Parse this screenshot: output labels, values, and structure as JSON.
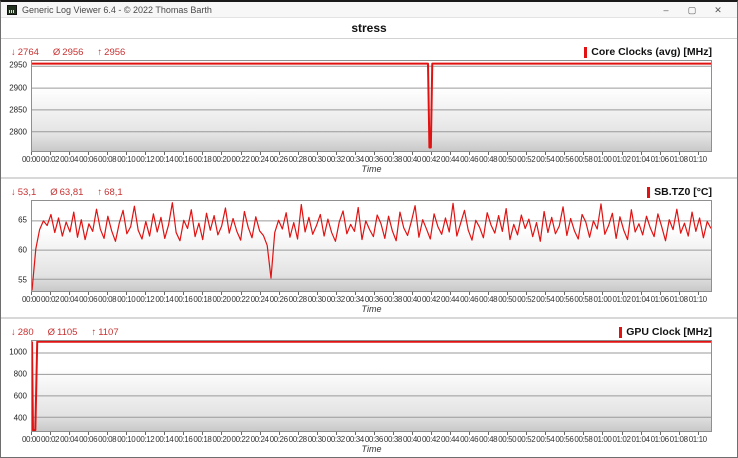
{
  "window": {
    "title": "Generic Log Viewer 6.4 - © 2022 Thomas Barth",
    "controls": [
      {
        "name": "minimize",
        "glyph": "–"
      },
      {
        "name": "maximize",
        "glyph": "▢"
      },
      {
        "name": "close",
        "glyph": "✕"
      }
    ]
  },
  "header": {
    "title": "stress"
  },
  "stat_glyphs": {
    "min": "↓",
    "avg": "Ø",
    "max": "↑"
  },
  "time_axis": {
    "label": "Time",
    "xlim": [
      0,
      71.5
    ],
    "tick_interval_min": 2,
    "tick_labels": [
      "00:00",
      "00:02",
      "00:04",
      "00:06",
      "00:08",
      "00:10",
      "00:12",
      "00:14",
      "00:16",
      "00:18",
      "00:20",
      "00:22",
      "00:24",
      "00:26",
      "00:28",
      "00:30",
      "00:32",
      "00:34",
      "00:36",
      "00:38",
      "00:40",
      "00:42",
      "00:44",
      "00:46",
      "00:48",
      "00:50",
      "00:52",
      "00:54",
      "00:56",
      "00:58",
      "01:00",
      "01:02",
      "01:04",
      "01:06",
      "01:08",
      "01:10"
    ]
  },
  "chart_data": [
    {
      "type": "line",
      "name": "Core Clocks (avg) [MHz]",
      "color": "#e11212",
      "line_width": 2,
      "stats": {
        "min": "2764",
        "avg": "2956",
        "max": "2956"
      },
      "ylim": [
        2756,
        2962
      ],
      "yticks": [
        2950,
        2900,
        2850,
        2800
      ],
      "series": {
        "x": [
          0,
          41.7,
          41.85,
          42.0,
          42.15,
          71.5
        ],
        "y": [
          2956,
          2956,
          2764,
          2764,
          2956,
          2956
        ]
      }
    },
    {
      "type": "line",
      "name": "SB.TZ0 [°C]",
      "color": "#e11212",
      "line_width": 1.2,
      "stats": {
        "min": "53,1",
        "avg": "63,81",
        "max": "68,1"
      },
      "ylim": [
        53,
        68.4
      ],
      "yticks": [
        65,
        60,
        55
      ],
      "series": {
        "values": [
          53.1,
          60.2,
          63.5,
          65.0,
          64.2,
          66.1,
          63.0,
          65.5,
          62.4,
          64.8,
          63.1,
          66.5,
          62.2,
          65.2,
          61.8,
          64.5,
          63.2,
          67.0,
          63.6,
          62.0,
          65.8,
          63.3,
          61.5,
          64.6,
          66.8,
          62.8,
          64.0,
          67.5,
          63.4,
          61.9,
          64.9,
          62.4,
          66.2,
          63.1,
          65.6,
          62.0,
          64.3,
          68.1,
          63.0,
          61.6,
          65.1,
          63.7,
          66.9,
          62.3,
          64.6,
          61.8,
          66.3,
          63.4,
          65.9,
          62.6,
          64.1,
          67.2,
          62.9,
          65.4,
          63.2,
          61.7,
          66.6,
          63.9,
          62.1,
          65.7,
          63.3,
          62.5,
          60.8,
          55.2,
          63.0,
          65.1,
          63.6,
          66.4,
          62.2,
          64.7,
          61.9,
          67.8,
          63.1,
          65.6,
          62.7,
          64.2,
          66.1,
          62.4,
          65.3,
          63.0,
          61.5,
          64.8,
          66.7,
          62.8,
          64.4,
          63.2,
          67.3,
          61.8,
          65.0,
          63.5,
          62.3,
          66.0,
          64.5,
          62.0,
          65.8,
          63.3,
          61.6,
          66.5,
          63.8,
          62.5,
          64.9,
          67.6,
          62.2,
          65.2,
          63.6,
          61.9,
          66.2,
          64.0,
          62.7,
          65.5,
          63.1,
          68.0,
          62.4,
          64.6,
          66.8,
          63.4,
          61.7,
          65.1,
          63.9,
          62.1,
          66.4,
          64.3,
          62.9,
          65.9,
          63.2,
          67.1,
          61.8,
          64.4,
          62.6,
          66.0,
          63.7,
          65.3,
          62.3,
          64.7,
          61.5,
          66.6,
          63.0,
          65.6,
          62.8,
          64.1,
          67.4,
          62.5,
          65.4,
          63.3,
          61.9,
          66.1,
          64.8,
          62.2,
          65.0,
          63.6,
          67.9,
          62.7,
          64.2,
          66.3,
          62.0,
          65.7,
          63.4,
          61.8,
          66.9,
          63.1,
          64.5,
          62.6,
          65.8,
          63.8,
          62.3,
          66.2,
          64.0,
          61.6,
          65.2,
          63.5,
          67.0,
          62.9,
          64.6,
          62.4,
          66.5,
          63.2,
          65.5,
          62.1,
          64.9,
          63.7
        ]
      }
    },
    {
      "type": "line",
      "name": "GPU Clock [MHz]",
      "color": "#e11212",
      "line_width": 2,
      "stats": {
        "min": "280",
        "avg": "1105",
        "max": "1107"
      },
      "ylim": [
        272,
        1112
      ],
      "yticks": [
        1000,
        800,
        600,
        400
      ],
      "series": {
        "x": [
          0,
          0.1,
          0.35,
          0.55,
          71.5
        ],
        "y": [
          1107,
          280,
          280,
          1105,
          1105
        ]
      }
    }
  ]
}
